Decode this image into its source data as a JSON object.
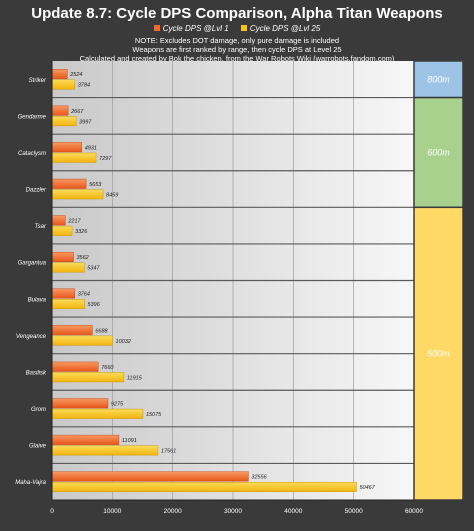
{
  "chart_data": {
    "type": "bar",
    "orientation": "horizontal",
    "title": "Update 8.7: Cycle DPS Comparison, Alpha Titan Weapons",
    "notes": [
      "NOTE: Excludes DOT damage, only pure damage is included",
      "Weapons are first ranked by range, then cycle DPS at Level 25",
      "Calculated and created by Bok the chicken, from the War Robots Wiki (warrobots.fandom.com)"
    ],
    "categories": [
      "Striker",
      "Gendarme",
      "Cataclysm",
      "Dazzler",
      "Tsar",
      "Gargantua",
      "Bulava",
      "Vengeance",
      "Basilisk",
      "Grom",
      "Glaive",
      "Maha-Vajra"
    ],
    "series": [
      {
        "name": "Cycle DPS @Lvl 1",
        "color": "#f26b2a",
        "values": [
          2524,
          2667,
          4931,
          5653,
          2217,
          3562,
          3764,
          6688,
          7660,
          9275,
          11091,
          32556
        ]
      },
      {
        "name": "Cycle DPS @Lvl 25",
        "color": "#f7c21b",
        "values": [
          3784,
          3997,
          7297,
          8459,
          3326,
          5347,
          5396,
          10032,
          11915,
          15075,
          17561,
          50467
        ]
      }
    ],
    "xlim": [
      0,
      60000
    ],
    "xticks": [
      "0",
      "10000",
      "20000",
      "30000",
      "40000",
      "50000",
      "60000"
    ],
    "grid": true,
    "legend_position": "top-center",
    "range_bands": [
      {
        "label": "800m",
        "color": "#9dc3e6",
        "categories": [
          "Striker"
        ]
      },
      {
        "label": "600m",
        "color": "#a9d18e",
        "categories": [
          "Gendarme",
          "Cataclysm",
          "Dazzler"
        ]
      },
      {
        "label": "500m",
        "color": "#ffd966",
        "categories": [
          "Tsar",
          "Gargantua",
          "Bulava",
          "Vengeance",
          "Basilisk",
          "Grom",
          "Glaive",
          "Maha-Vajra"
        ]
      }
    ]
  }
}
